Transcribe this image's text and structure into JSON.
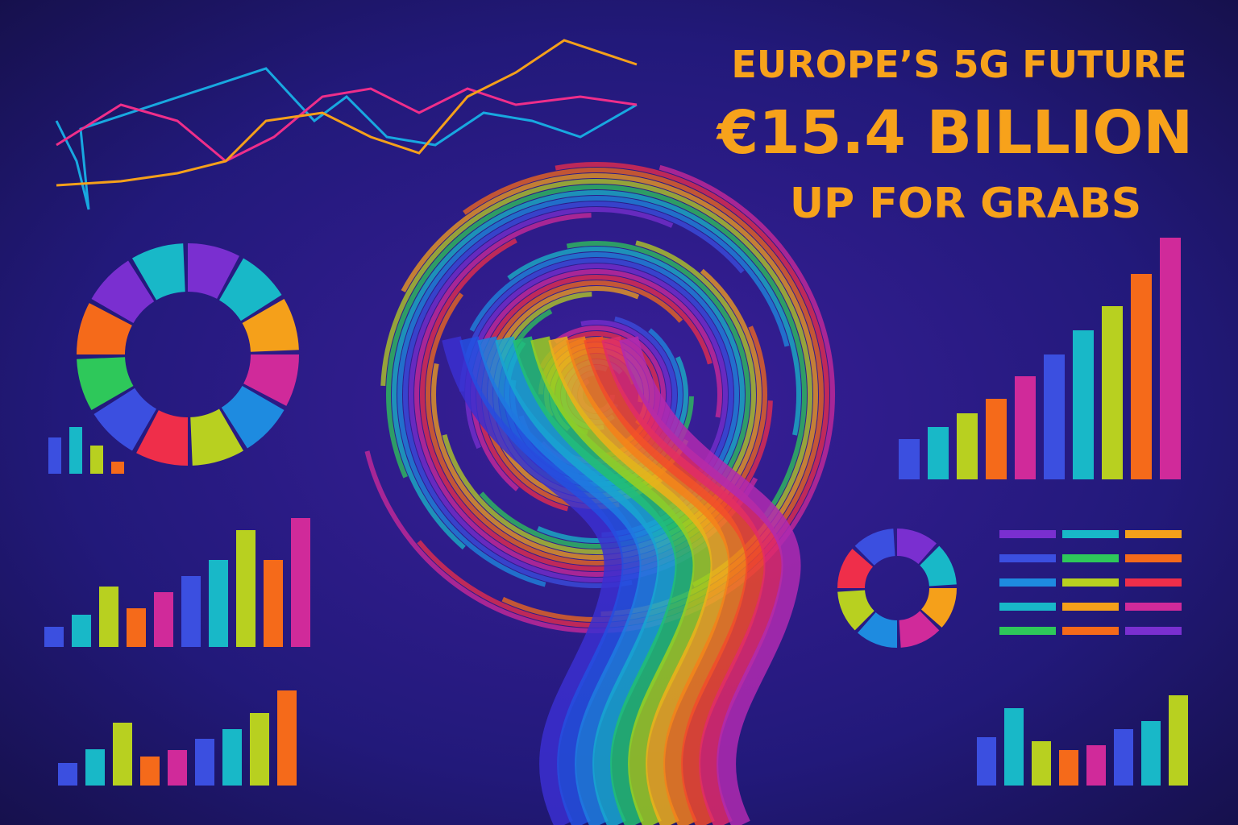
{
  "header": {
    "lines": [
      "EUROPE’S 5G FUTURE",
      "€15.4 BILLION",
      "UP FOR GRABS"
    ]
  }
}
